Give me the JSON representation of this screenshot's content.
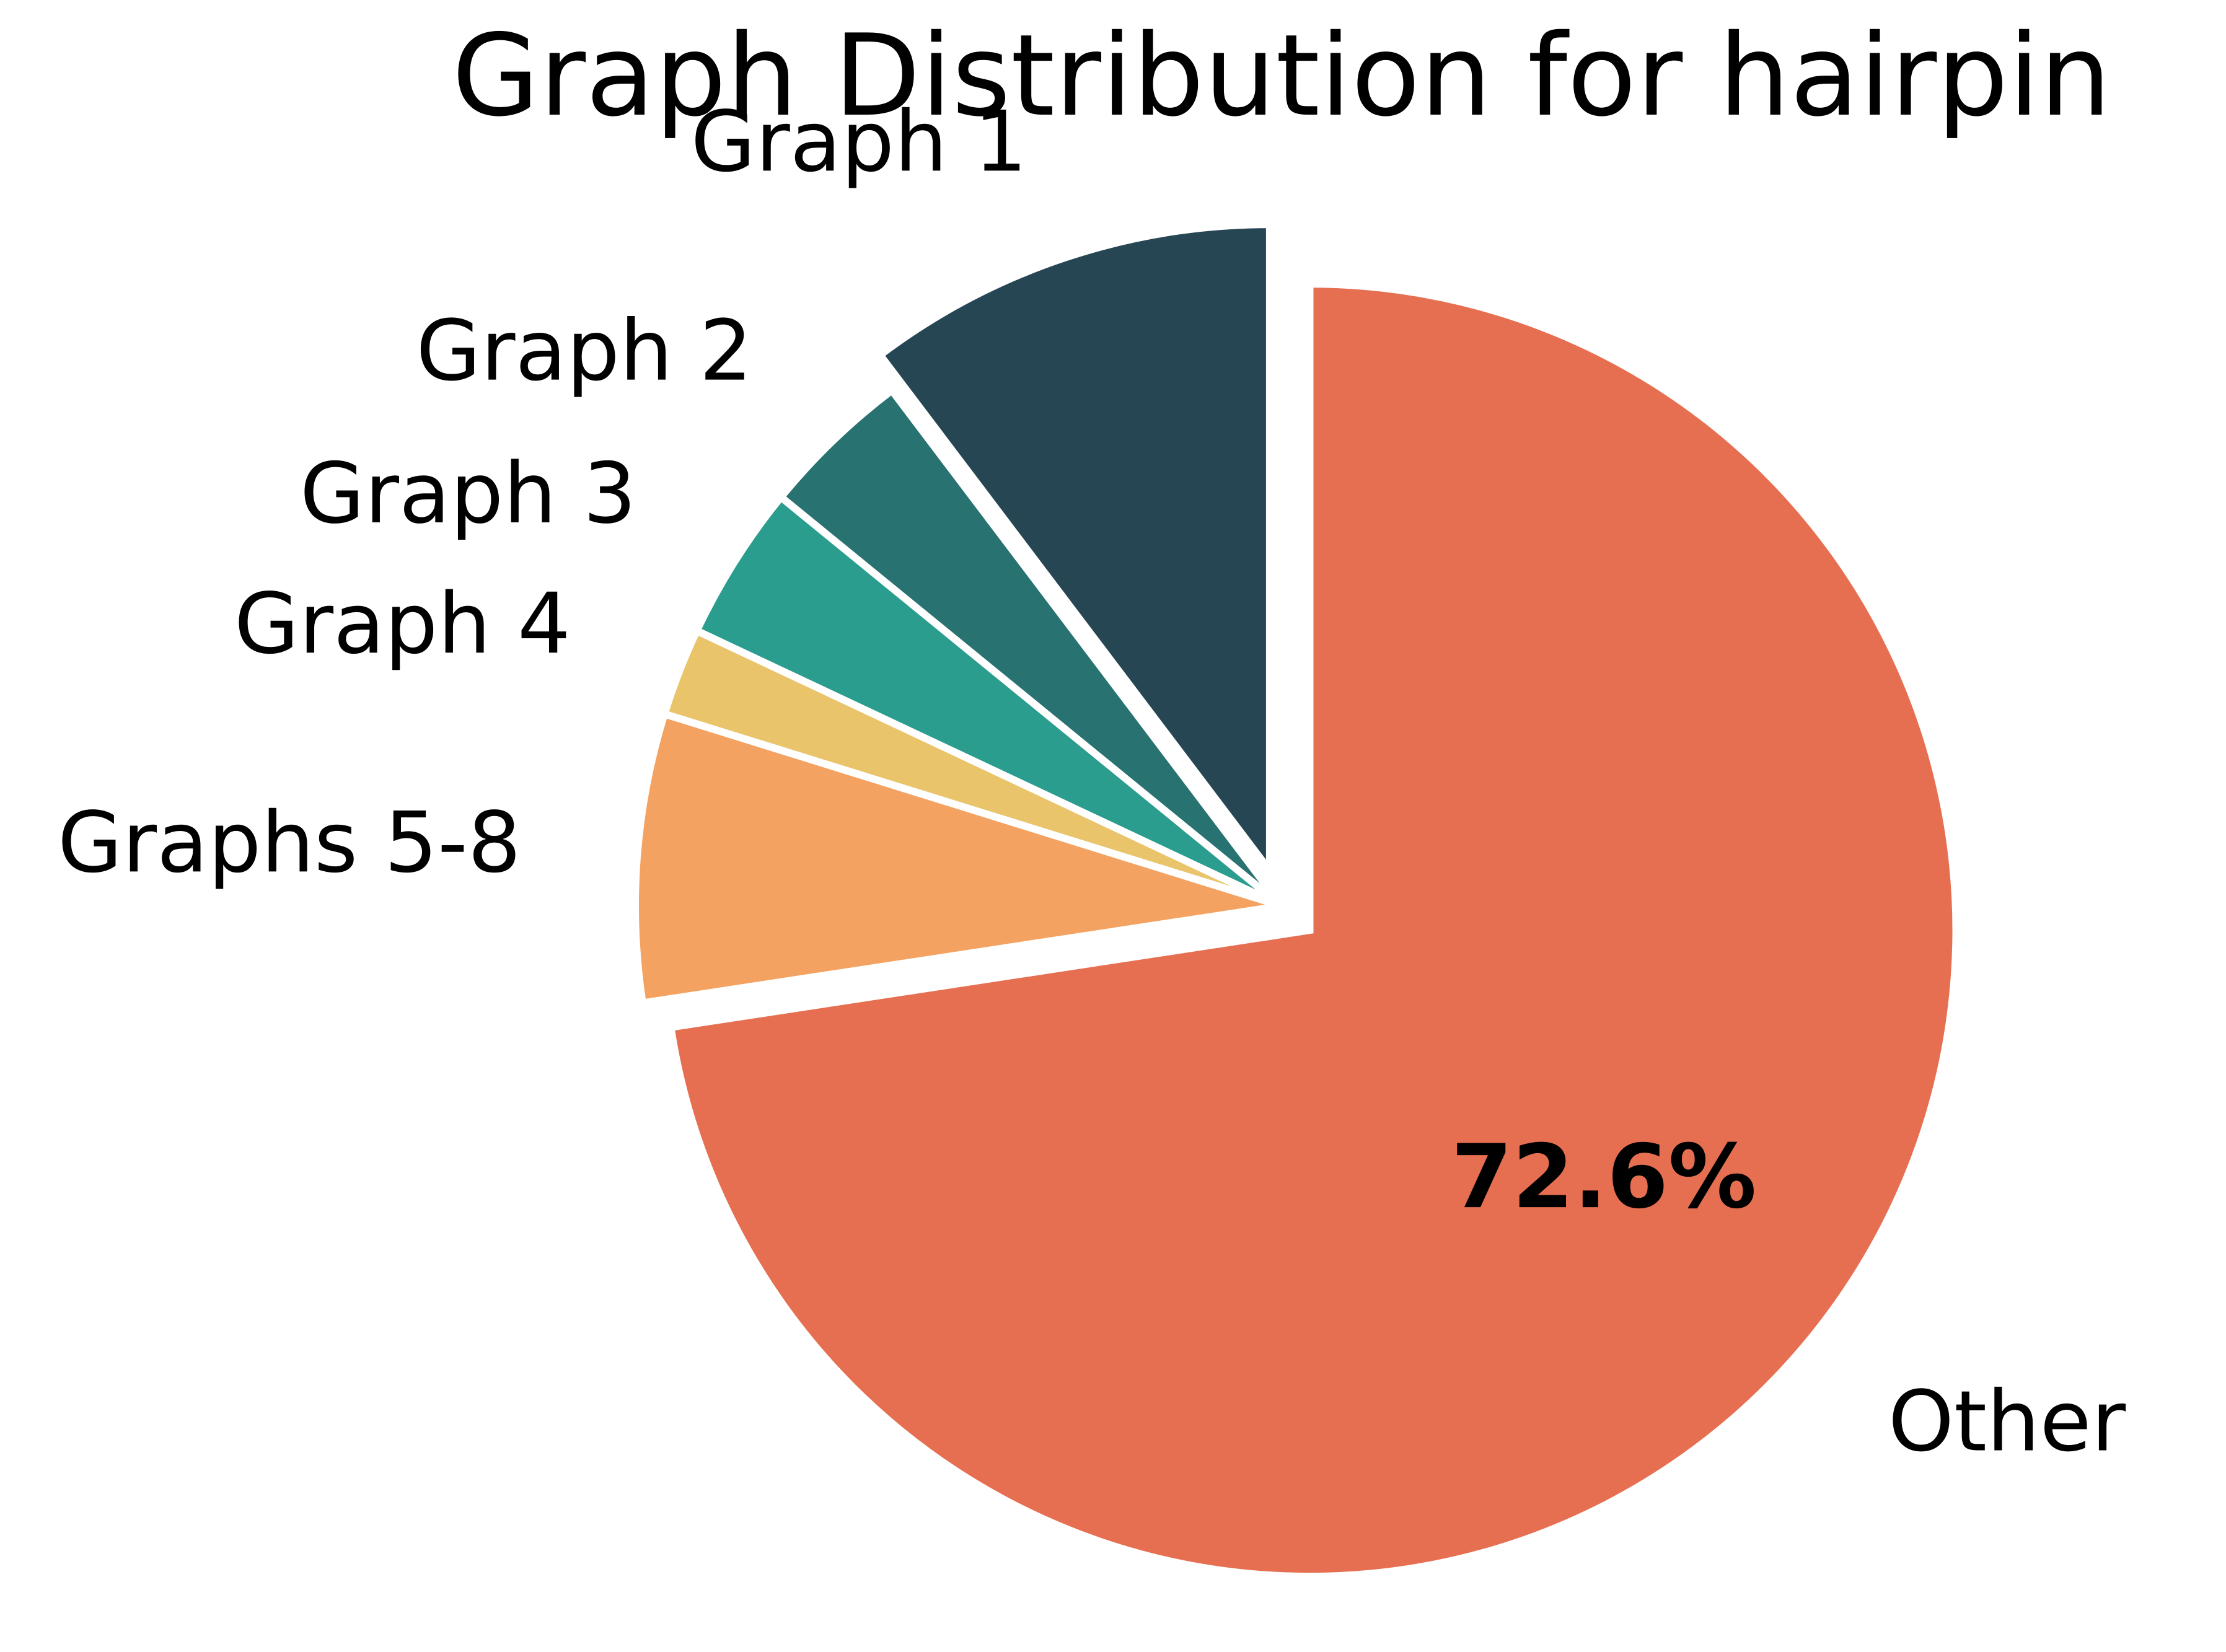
{
  "chart_data": {
    "type": "pie",
    "title": "Graph Distribution for hairpin",
    "slices": [
      {
        "label": "Graph 1",
        "value": 10.3,
        "color": "#264653",
        "exploded": true,
        "show_pct": false
      },
      {
        "label": "Graph 2",
        "value": 3.8,
        "color": "#287271",
        "exploded": false,
        "show_pct": false
      },
      {
        "label": "Graph 3",
        "value": 3.9,
        "color": "#2a9d8f",
        "exploded": false,
        "show_pct": false
      },
      {
        "label": "Graph 4",
        "value": 2.2,
        "color": "#e9c46a",
        "exploded": false,
        "show_pct": false
      },
      {
        "label": "Graphs 5-8",
        "value": 7.2,
        "color": "#f4a261",
        "exploded": false,
        "show_pct": false
      },
      {
        "label": "Other",
        "value": 72.6,
        "pct_label": "72.6%",
        "color": "#e76f51",
        "exploded": true,
        "show_pct": true
      }
    ],
    "start_angle": 90,
    "direction": "counterclockwise"
  }
}
